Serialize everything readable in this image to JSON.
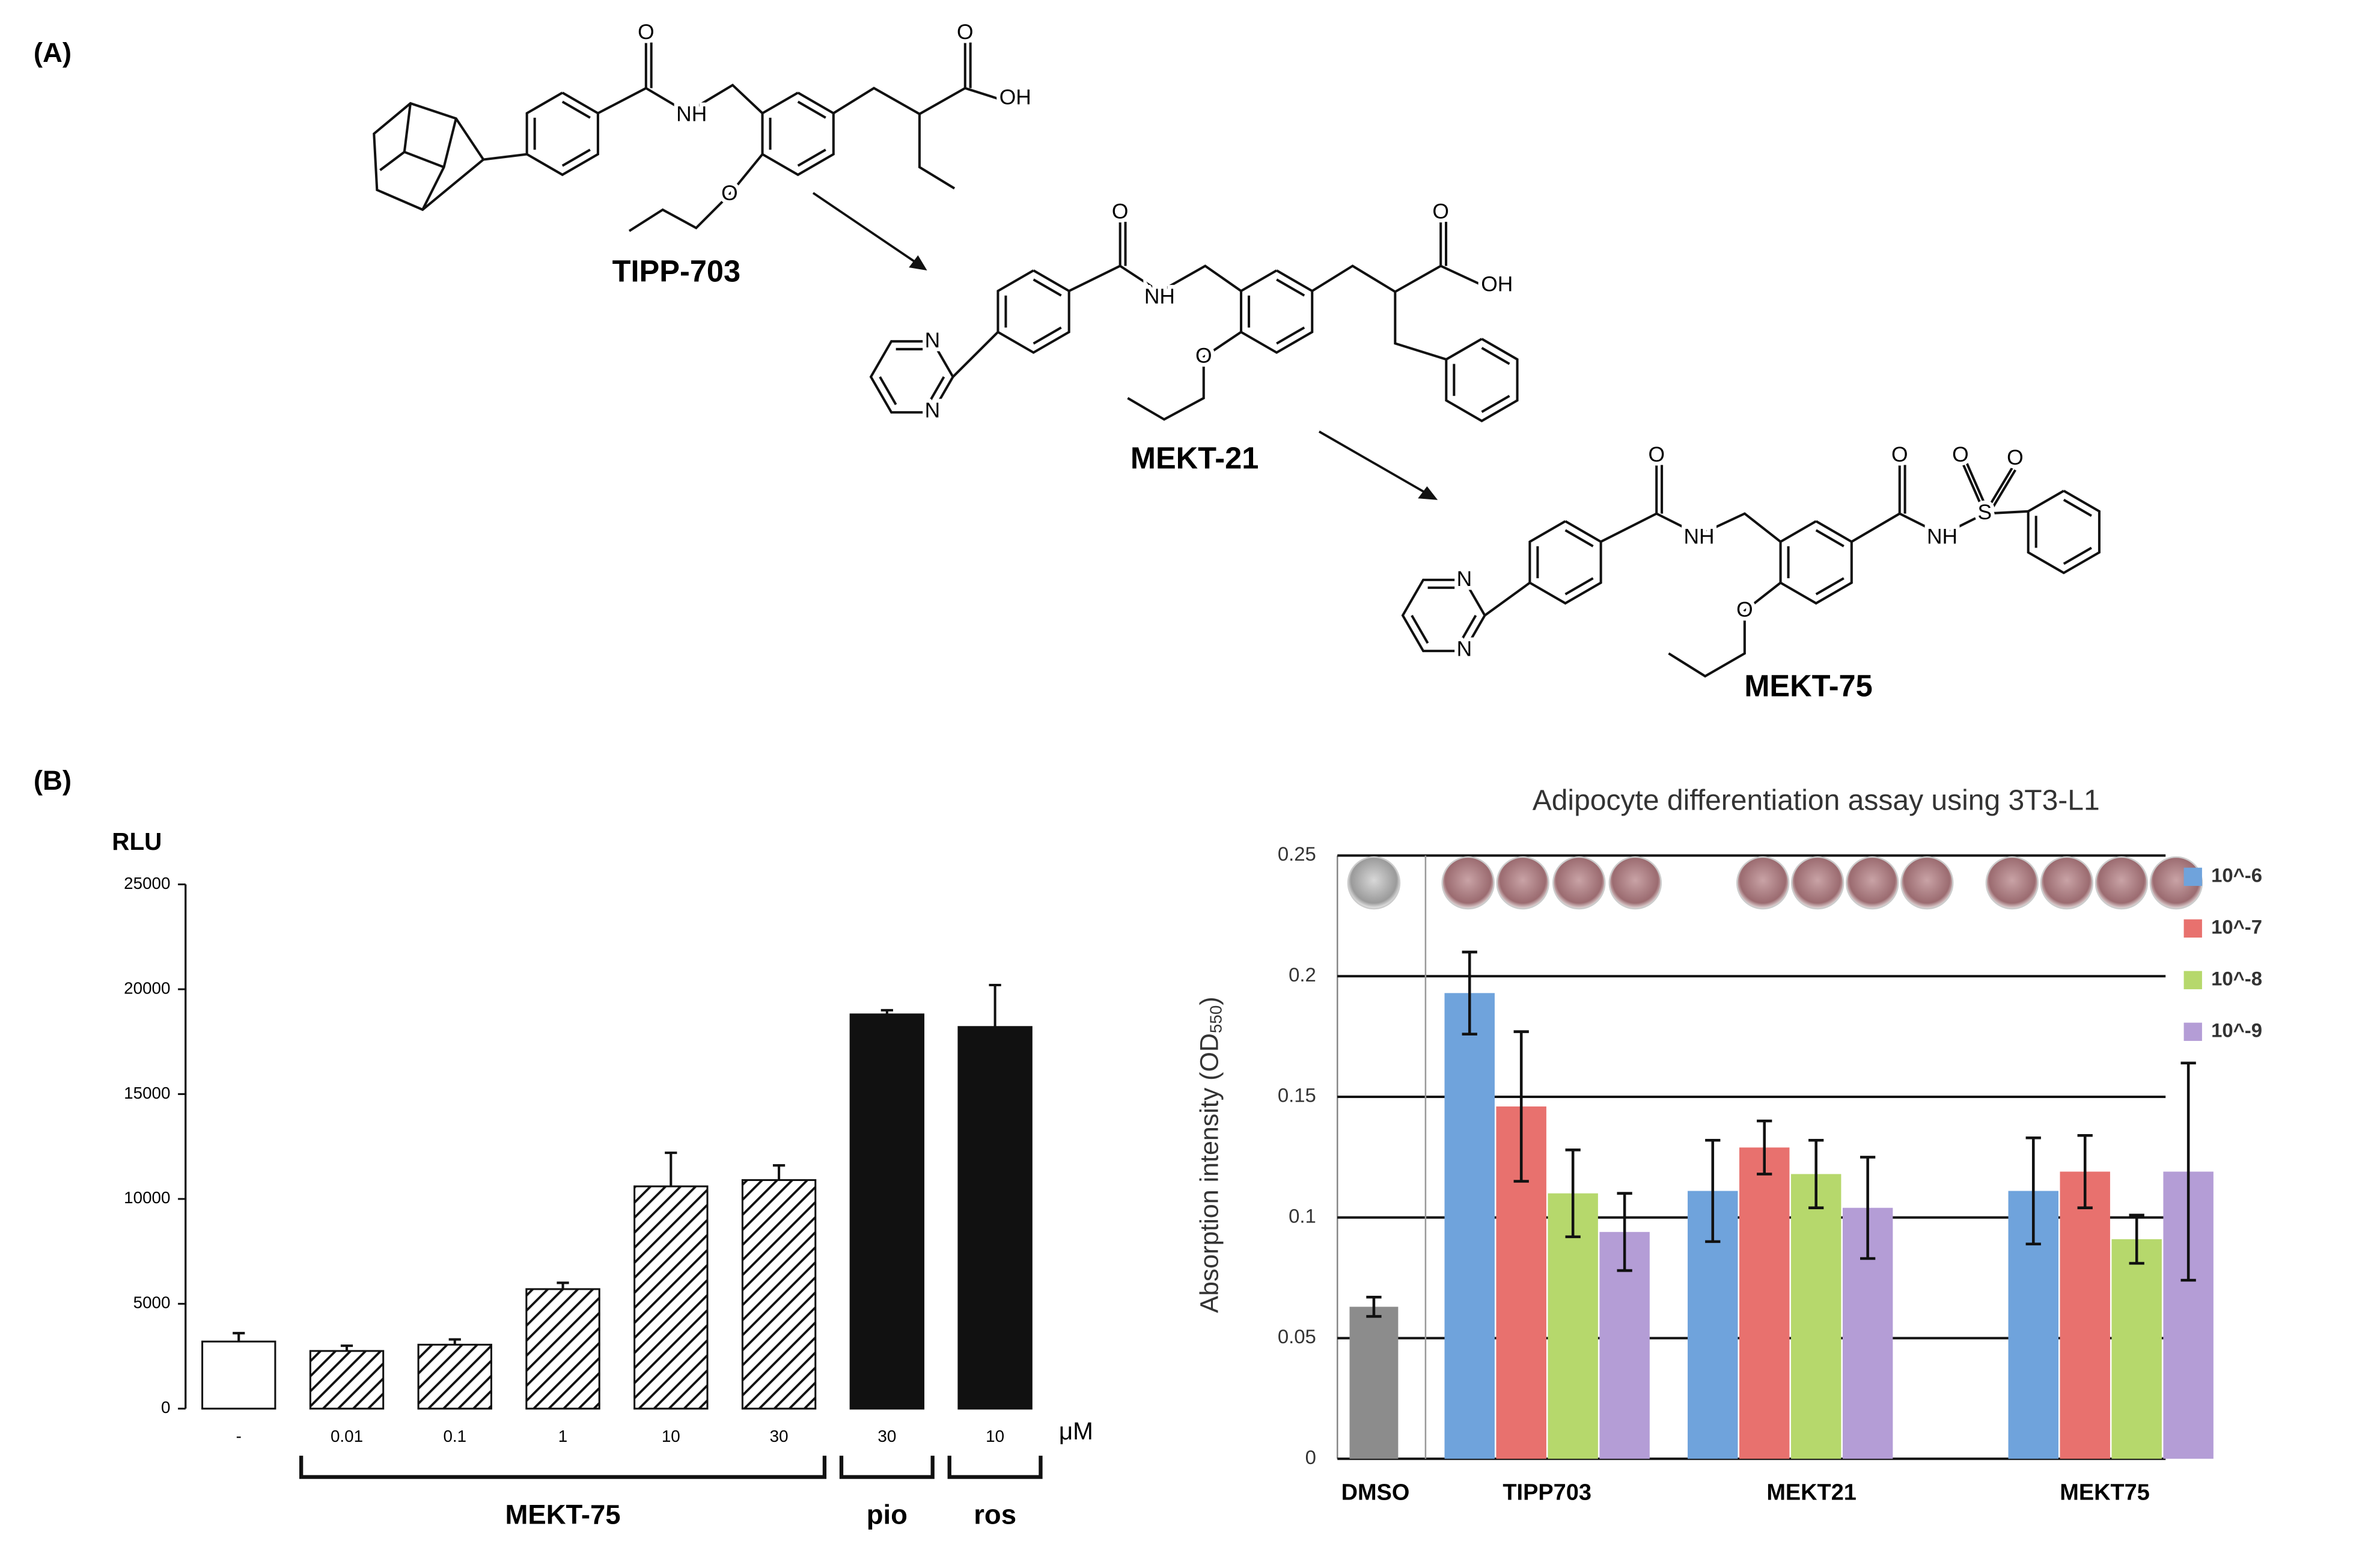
{
  "panel_labels": [
    "(A)",
    "(B)"
  ],
  "structures": [
    {
      "name": "TIPP-703",
      "atoms": [
        "O",
        "NH",
        "O",
        "O",
        "OH"
      ]
    },
    {
      "name": "MEKT-21",
      "atoms": [
        "N",
        "N",
        "O",
        "NH",
        "O",
        "O",
        "OH"
      ]
    },
    {
      "name": "MEKT-75",
      "atoms": [
        "N",
        "N",
        "O",
        "NH",
        "O",
        "O",
        "NH",
        "S",
        "O",
        "O"
      ]
    }
  ],
  "chart_data": [
    {
      "type": "bar",
      "y_label": "RLU",
      "unit": "μM",
      "categories": [
        "-",
        "0.01",
        "0.1",
        "1",
        "10",
        "30",
        "30",
        "10"
      ],
      "values": [
        3200,
        2750,
        3050,
        5700,
        10600,
        10900,
        18800,
        18200
      ],
      "errors": [
        400,
        250,
        250,
        300,
        1600,
        700,
        200,
        2000
      ],
      "bar_styles": [
        "open",
        "hatched",
        "hatched",
        "hatched",
        "hatched",
        "hatched",
        "solid",
        "solid"
      ],
      "groups": [
        {
          "label": "MEKT-75",
          "from": 1,
          "to": 5
        },
        {
          "label": "pio",
          "from": 6,
          "to": 6
        },
        {
          "label": "ros",
          "from": 7,
          "to": 7
        }
      ],
      "ylim": [
        0,
        25000
      ],
      "yticks": [
        0,
        5000,
        10000,
        15000,
        20000,
        25000
      ],
      "grid": false
    },
    {
      "type": "grouped_bar",
      "title": "Adipocyte differentiation assay using 3T3-L1",
      "y_label": [
        "Absorption intensity (OD",
        "550",
        ")"
      ],
      "categories": [
        "DMSO",
        "TIPP703",
        "MEKT21",
        "MEKT75"
      ],
      "control_value": 0.063,
      "control_error": 0.004,
      "control_color": "#8c8c8c",
      "series": [
        {
          "name": "10^-6",
          "color": "#6fa3dc",
          "values": [
            null,
            0.193,
            0.111,
            0.111
          ],
          "errors": [
            null,
            0.017,
            0.021,
            0.022
          ]
        },
        {
          "name": "10^-7",
          "color": "#e8716e",
          "values": [
            null,
            0.146,
            0.129,
            0.119
          ],
          "errors": [
            null,
            0.031,
            0.011,
            0.015
          ]
        },
        {
          "name": "10^-8",
          "color": "#b6d86c",
          "values": [
            null,
            0.11,
            0.118,
            0.091
          ],
          "errors": [
            null,
            0.018,
            0.014,
            0.01
          ]
        },
        {
          "name": "10^-9",
          "color": "#b49dd6",
          "values": [
            null,
            0.094,
            0.104,
            0.119
          ],
          "errors": [
            null,
            0.016,
            0.021,
            0.045
          ]
        }
      ],
      "ylim": [
        0,
        0.25
      ],
      "yticks": [
        0,
        0.05,
        0.1,
        0.15,
        0.2,
        0.25
      ],
      "grid": true,
      "legend": "right"
    }
  ]
}
